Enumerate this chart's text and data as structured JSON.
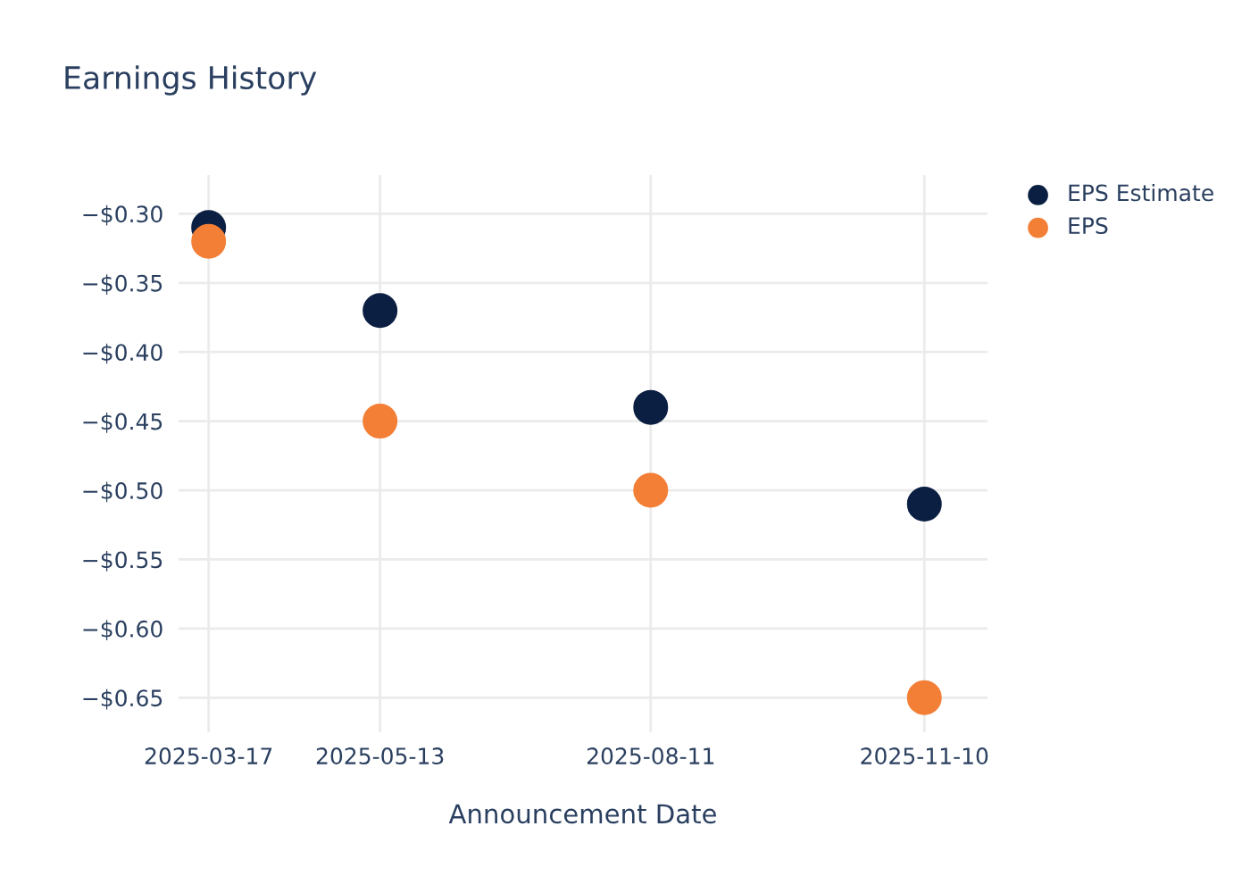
{
  "chart_data": {
    "type": "scatter",
    "title": "Earnings History",
    "xlabel": "Announcement Date",
    "x": [
      "2025-03-17",
      "2025-05-13",
      "2025-08-11",
      "2025-11-10"
    ],
    "series": [
      {
        "name": "EPS Estimate",
        "color": "#0b1f42",
        "values": [
          -0.31,
          -0.37,
          -0.44,
          -0.51
        ]
      },
      {
        "name": "EPS",
        "color": "#f37f36",
        "values": [
          -0.32,
          -0.45,
          -0.5,
          -0.65
        ]
      }
    ],
    "xlim": [
      "2025-03-07",
      "2025-12-01"
    ],
    "xticks": [
      "2025-03-17",
      "2025-05-13",
      "2025-08-11",
      "2025-11-10"
    ],
    "ylim": [
      -0.675,
      -0.272
    ],
    "yticks": [
      {
        "value": -0.3,
        "label": "−$0.30"
      },
      {
        "value": -0.35,
        "label": "−$0.35"
      },
      {
        "value": -0.4,
        "label": "−$0.40"
      },
      {
        "value": -0.45,
        "label": "−$0.45"
      },
      {
        "value": -0.5,
        "label": "−$0.50"
      },
      {
        "value": -0.55,
        "label": "−$0.55"
      },
      {
        "value": -0.6,
        "label": "−$0.60"
      },
      {
        "value": -0.65,
        "label": "−$0.65"
      }
    ],
    "grid": true,
    "legend": "top right",
    "marker": "circle"
  }
}
